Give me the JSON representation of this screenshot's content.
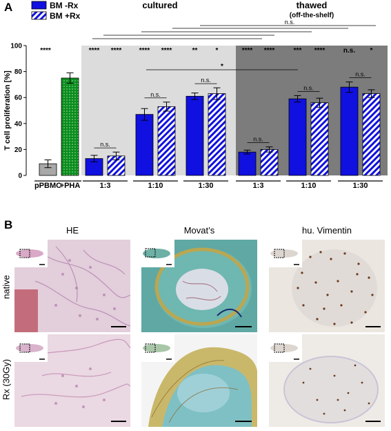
{
  "panel_a": {
    "label": "A",
    "legend": [
      {
        "name": "BM -Rx",
        "fill": "#1010e0",
        "pattern": "solid"
      },
      {
        "name": "BM +Rx",
        "fill": "#1010e0",
        "pattern": "hatch"
      }
    ],
    "group_headers": {
      "cultured": "cultured",
      "thawed": "thawed",
      "thawed_sub": "(off-the-shelf)"
    },
    "top_bracket_label": "n.s.",
    "control_stars": "****",
    "long_bracket_label": "*"
  },
  "chart_data": {
    "type": "bar",
    "ylabel": "T cell proliferation [%]",
    "ylim": [
      0,
      100
    ],
    "yticks": [
      "0",
      "20",
      "40",
      "60",
      "80",
      "100"
    ],
    "controls": [
      {
        "label": "pPBMC",
        "value": 9,
        "err": 3,
        "color": "#a8a8a8",
        "pattern": "solid"
      },
      {
        "label": "+PHA",
        "value": 75,
        "err": 4,
        "color": "#0b8c1e",
        "pattern": "dots"
      }
    ],
    "groups": [
      {
        "condition": "cultured",
        "ratio": "1:3",
        "minus_rx": 13,
        "minus_err": 2.5,
        "plus_rx": 15,
        "plus_err": 3,
        "stars": [
          "****",
          "****"
        ],
        "pair_label": "n.s."
      },
      {
        "condition": "cultured",
        "ratio": "1:10",
        "minus_rx": 47,
        "minus_err": 4.5,
        "plus_rx": 53,
        "plus_err": 3.5,
        "stars": [
          "****",
          "****"
        ],
        "pair_label": "n.s."
      },
      {
        "condition": "cultured",
        "ratio": "1:30",
        "minus_rx": 61,
        "minus_err": 2.5,
        "plus_rx": 63,
        "plus_err": 4.5,
        "stars": [
          "**",
          "*"
        ],
        "pair_label": "n.s."
      },
      {
        "condition": "thawed",
        "ratio": "1:3",
        "minus_rx": 18,
        "minus_err": 1.5,
        "plus_rx": 20,
        "plus_err": 2,
        "stars": [
          "****",
          "****"
        ],
        "pair_label": "n.s."
      },
      {
        "condition": "thawed",
        "ratio": "1:10",
        "minus_rx": 59,
        "minus_err": 2.5,
        "plus_rx": 56,
        "plus_err": 3.5,
        "stars": [
          "***",
          "****"
        ],
        "pair_label": "n.s."
      },
      {
        "condition": "thawed",
        "ratio": "1:30",
        "minus_rx": 68,
        "minus_err": 4,
        "plus_rx": 63,
        "plus_err": 3,
        "stars": [
          "n.s.",
          "*"
        ],
        "pair_label": "n.s."
      }
    ]
  },
  "panel_b": {
    "label": "B",
    "columns": [
      "HE",
      "Movat’s",
      "hu. Vimentin"
    ],
    "rows": [
      "native",
      "Rx (30Gy)"
    ],
    "colors": {
      "he_bg": "#e2cbd9",
      "he_stain": "#b886b2",
      "movat_bg": "#5fa8a4",
      "movat_stain": "#c8a442",
      "vim_bg": "#e9e4df",
      "vim_stain": "#6b3a1c"
    }
  }
}
